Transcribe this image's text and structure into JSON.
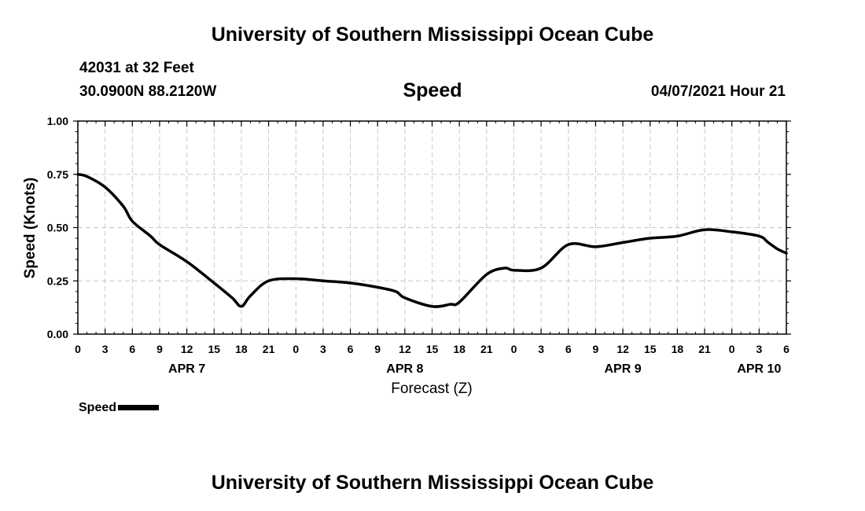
{
  "header": {
    "title_top": "University of Southern Mississippi Ocean Cube",
    "station": "42031 at 32 Feet",
    "coords": "30.0900N  88.2120W",
    "datetime": "04/07/2021 Hour 21"
  },
  "footer": {
    "title_bottom": "University of Southern Mississippi Ocean Cube"
  },
  "legend": {
    "label": "Speed",
    "color": "#000000"
  },
  "chart_data": {
    "type": "line",
    "title": "Speed",
    "xlabel": "Forecast (Z)",
    "ylabel": "Speed (Knots)",
    "xlim": [
      0,
      78
    ],
    "ylim": [
      0,
      1
    ],
    "grid": true,
    "y_ticks": [
      0,
      0.25,
      0.5,
      0.75,
      1.0
    ],
    "y_tick_labels": [
      "0.00",
      "0.25",
      "0.50",
      "0.75",
      "1.00"
    ],
    "x_ticks": [
      0,
      3,
      6,
      9,
      12,
      15,
      18,
      21,
      24,
      27,
      30,
      33,
      36,
      39,
      42,
      45,
      48,
      51,
      54,
      57,
      60,
      63,
      66,
      69,
      72,
      75,
      78
    ],
    "x_tick_labels": [
      "0",
      "3",
      "6",
      "9",
      "12",
      "15",
      "18",
      "21",
      "0",
      "3",
      "6",
      "9",
      "12",
      "15",
      "18",
      "21",
      "0",
      "3",
      "6",
      "9",
      "12",
      "15",
      "18",
      "21",
      "0",
      "3",
      "6"
    ],
    "day_labels": [
      {
        "label": "APR 7",
        "x": 12
      },
      {
        "label": "APR 8",
        "x": 36
      },
      {
        "label": "APR 9",
        "x": 60
      },
      {
        "label": "APR 10",
        "x": 75
      }
    ],
    "series": [
      {
        "name": "Speed",
        "x": [
          0,
          1,
          3,
          5,
          6,
          8,
          9,
          12,
          15,
          17,
          18,
          19,
          21,
          24,
          27,
          30,
          33,
          35,
          36,
          39,
          41,
          42,
          45,
          47,
          48,
          51,
          54,
          57,
          60,
          63,
          66,
          69,
          72,
          75,
          76,
          77,
          78
        ],
        "values": [
          0.75,
          0.74,
          0.69,
          0.6,
          0.53,
          0.46,
          0.42,
          0.34,
          0.24,
          0.17,
          0.13,
          0.18,
          0.25,
          0.26,
          0.25,
          0.24,
          0.22,
          0.2,
          0.17,
          0.13,
          0.14,
          0.15,
          0.28,
          0.31,
          0.3,
          0.31,
          0.42,
          0.41,
          0.43,
          0.45,
          0.46,
          0.49,
          0.48,
          0.46,
          0.43,
          0.4,
          0.38
        ]
      }
    ]
  }
}
